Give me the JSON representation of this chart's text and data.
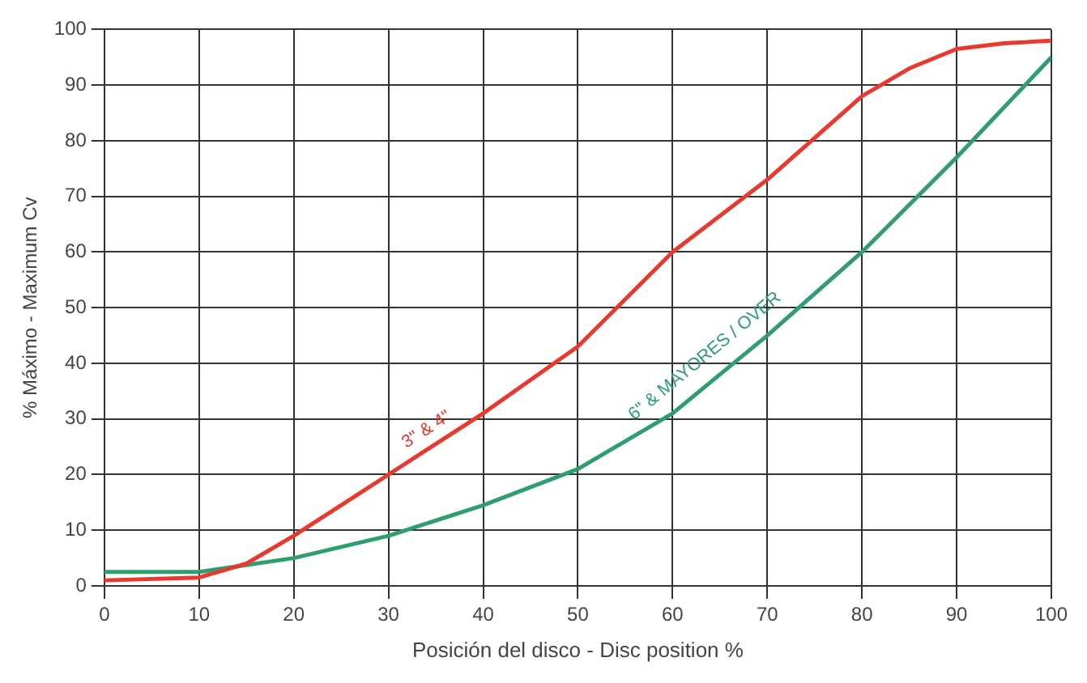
{
  "chart_data": {
    "type": "line",
    "xlabel": "Posición del disco - Disc position %",
    "ylabel": "% Máximo - Maximum Cv",
    "xlim": [
      0,
      100
    ],
    "xticks": [
      0,
      10,
      20,
      30,
      40,
      50,
      60,
      70,
      80,
      90,
      100
    ],
    "ylim": [
      0,
      100
    ],
    "yticks": [
      0,
      10,
      20,
      30,
      40,
      50,
      60,
      70,
      80,
      90,
      100
    ],
    "grid": true,
    "legend": false,
    "marker": "none",
    "line_style": "solid",
    "series": [
      {
        "name": "3\" & 4\"",
        "color": "#e8392f",
        "x": [
          0,
          10,
          15,
          20,
          25,
          30,
          40,
          50,
          60,
          70,
          80,
          85,
          90,
          95,
          100
        ],
        "values": [
          1,
          1.5,
          4,
          9,
          14.5,
          20,
          31,
          43,
          60,
          73,
          88,
          93,
          96.5,
          97.5,
          98
        ]
      },
      {
        "name": "6\" & MAYORES / OVER",
        "color": "#2e9e6e",
        "x": [
          0,
          10,
          20,
          30,
          40,
          50,
          60,
          70,
          80,
          90,
          100
        ],
        "values": [
          2.5,
          2.5,
          5,
          9,
          14.5,
          21,
          31,
          45,
          60,
          77,
          95
        ]
      }
    ]
  }
}
